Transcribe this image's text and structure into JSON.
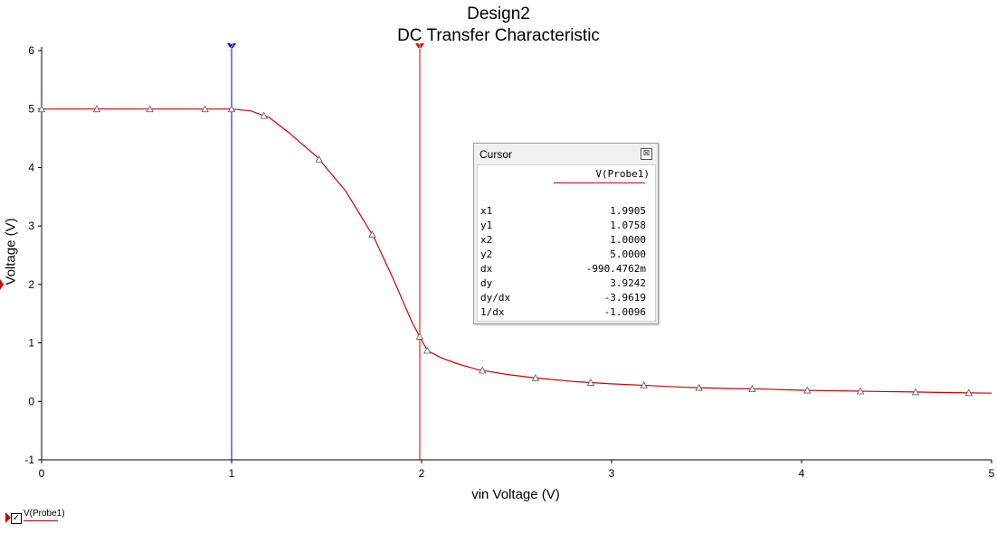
{
  "chart_data": {
    "type": "line",
    "title": "Design2",
    "subtitle": "DC Transfer Characteristic",
    "xlabel": "vin Voltage (V)",
    "ylabel": "Voltage (V)",
    "xlim": [
      0,
      5
    ],
    "ylim": [
      -1,
      6
    ],
    "xticks": [
      "0",
      "1",
      "2",
      "3",
      "4",
      "5"
    ],
    "yticks": [
      "-1",
      "0",
      "1",
      "2",
      "3",
      "4",
      "5",
      "6"
    ],
    "grid": false,
    "series": [
      {
        "name": "V(Probe1)",
        "color": "#cc0000",
        "x": [
          0,
          0.29,
          0.57,
          0.86,
          1.0,
          1.1,
          1.2,
          1.3,
          1.45,
          1.6,
          1.75,
          1.85,
          1.95,
          2.0,
          2.03,
          2.1,
          2.2,
          2.3,
          2.45,
          2.6,
          2.8,
          3.0,
          3.2,
          3.4,
          3.6,
          3.8,
          4.0,
          4.2,
          4.4,
          4.6,
          4.8,
          5.0
        ],
        "values": [
          5.0,
          5.0,
          5.0,
          5.0,
          5.0,
          4.97,
          4.85,
          4.6,
          4.18,
          3.6,
          2.8,
          2.1,
          1.35,
          1.05,
          0.87,
          0.75,
          0.63,
          0.54,
          0.46,
          0.4,
          0.34,
          0.3,
          0.27,
          0.24,
          0.22,
          0.21,
          0.19,
          0.18,
          0.17,
          0.16,
          0.15,
          0.14
        ]
      }
    ],
    "markers_x": [
      0,
      0.29,
      0.57,
      0.86,
      1.0,
      1.17,
      1.46,
      1.74,
      1.99,
      2.03,
      2.32,
      2.6,
      2.89,
      3.17,
      3.46,
      3.74,
      4.03,
      4.31,
      4.6,
      4.88
    ],
    "cursors": [
      {
        "name": "cursor-2",
        "x": 1.0,
        "label": "2",
        "color": "#0000cc"
      },
      {
        "name": "cursor-1",
        "x": 1.9905,
        "label": "1",
        "color": "#cc0000"
      }
    ]
  },
  "cursor_window": {
    "title": "Cursor",
    "close": "⊠",
    "column": "V(Probe1)",
    "rows": [
      {
        "label": "x1",
        "value": "1.9905"
      },
      {
        "label": "y1",
        "value": "1.0758"
      },
      {
        "label": "x2",
        "value": "1.0000"
      },
      {
        "label": "y2",
        "value": "5.0000"
      },
      {
        "label": "dx",
        "value": "-990.4762m"
      },
      {
        "label": "dy",
        "value": "3.9242"
      },
      {
        "label": "dy/dx",
        "value": "-3.9619"
      },
      {
        "label": "1/dx",
        "value": "-1.0096"
      }
    ]
  },
  "legend": {
    "label": "V(Probe1)",
    "checked": "✓"
  }
}
